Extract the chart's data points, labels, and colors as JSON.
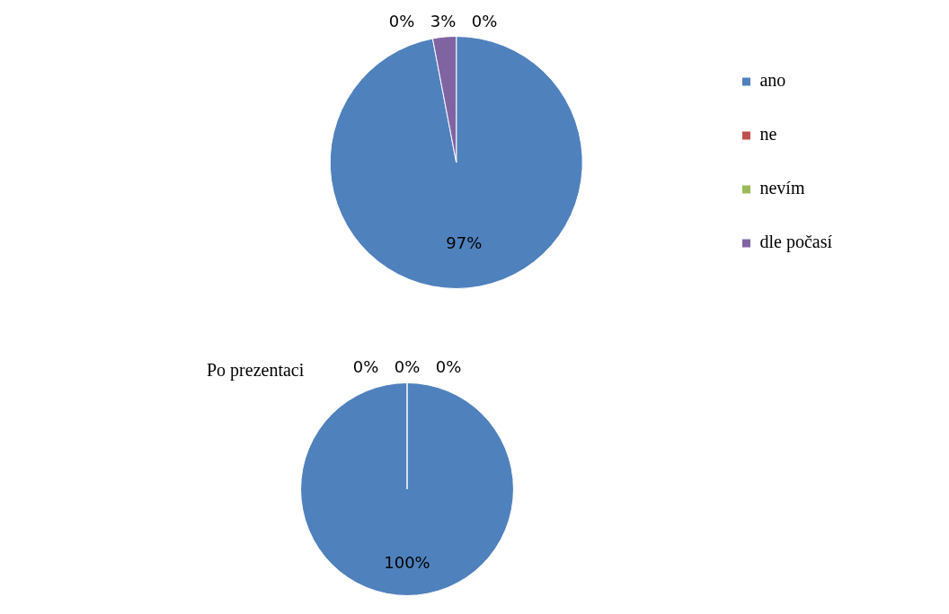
{
  "chart_data": [
    {
      "type": "pie",
      "categories": [
        "ano",
        "ne",
        "nevím",
        "dle počasí"
      ],
      "values": [
        97,
        0,
        0,
        3
      ],
      "colors": [
        "#4f81bd",
        "#c0504d",
        "#9bbb59",
        "#8064a2"
      ],
      "value_labels": [
        "97%",
        "0%",
        "0%",
        "3%"
      ],
      "legend": "right"
    },
    {
      "type": "pie",
      "title": "Po prezentaci",
      "categories": [
        null,
        null,
        null,
        null
      ],
      "values": [
        100,
        0,
        0,
        0
      ],
      "colors": [
        "#4f81bd",
        "#c0504d",
        "#9bbb59",
        "#8064a2"
      ],
      "value_labels": [
        "100%",
        "0%",
        "0%",
        "0%"
      ],
      "legend": false
    }
  ]
}
